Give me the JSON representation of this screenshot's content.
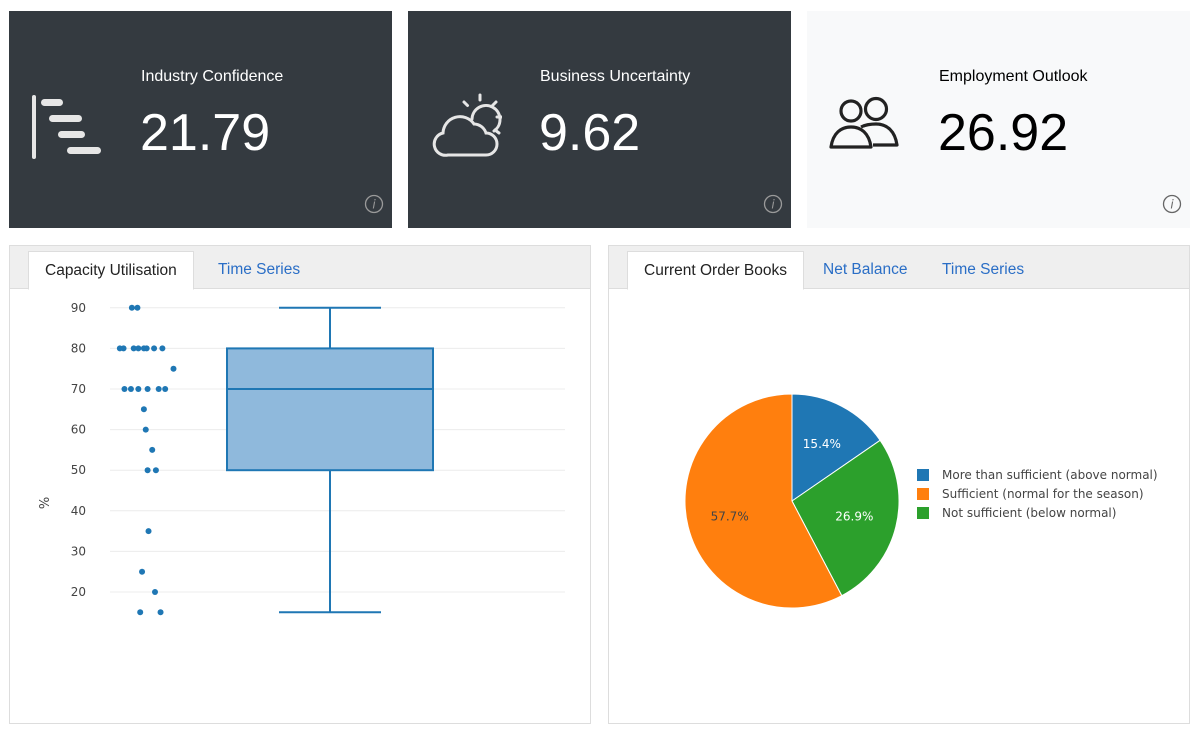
{
  "cards": [
    {
      "label": "Industry Confidence",
      "value": "21.79",
      "icon": "gantt-bars-icon"
    },
    {
      "label": "Business Uncertainty",
      "value": "9.62",
      "icon": "cloud-sun-icon"
    },
    {
      "label": "Employment Outlook",
      "value": "26.92",
      "icon": "people-icon"
    }
  ],
  "left_panel": {
    "tabs": [
      {
        "label": "Capacity Utilisation"
      },
      {
        "label": "Time Series"
      }
    ]
  },
  "right_panel": {
    "tabs": [
      {
        "label": "Current Order Books"
      },
      {
        "label": "Net Balance"
      },
      {
        "label": "Time Series"
      }
    ]
  },
  "colors": {
    "accent": "#1f77b4",
    "orange": "#ff7f0e",
    "green": "#2ca02c",
    "dark_card": "#343a40"
  },
  "chart_data": [
    {
      "type": "box",
      "ylabel": "%",
      "ylim": [
        10,
        95
      ],
      "yticks": [
        20,
        30,
        40,
        50,
        60,
        70,
        80,
        90
      ],
      "box": {
        "min": 15,
        "q1": 50,
        "median": 70,
        "q3": 80,
        "max": 90
      },
      "points": [
        {
          "x": 0.75,
          "y": 90
        },
        {
          "x": 1.05,
          "y": 90
        },
        {
          "x": 0.1,
          "y": 80
        },
        {
          "x": 0.3,
          "y": 80
        },
        {
          "x": 1.4,
          "y": 80
        },
        {
          "x": 1.55,
          "y": 80
        },
        {
          "x": 1.95,
          "y": 80
        },
        {
          "x": 1.1,
          "y": 80
        },
        {
          "x": 0.85,
          "y": 80
        },
        {
          "x": 2.4,
          "y": 80
        },
        {
          "x": 3.0,
          "y": 75
        },
        {
          "x": 0.35,
          "y": 70
        },
        {
          "x": 0.7,
          "y": 70
        },
        {
          "x": 1.1,
          "y": 70
        },
        {
          "x": 1.6,
          "y": 70
        },
        {
          "x": 2.2,
          "y": 70
        },
        {
          "x": 2.55,
          "y": 70
        },
        {
          "x": 1.4,
          "y": 65
        },
        {
          "x": 1.5,
          "y": 60
        },
        {
          "x": 1.85,
          "y": 55
        },
        {
          "x": 1.6,
          "y": 50
        },
        {
          "x": 2.05,
          "y": 50
        },
        {
          "x": 1.65,
          "y": 35
        },
        {
          "x": 1.3,
          "y": 25
        },
        {
          "x": 2.0,
          "y": 20
        },
        {
          "x": 1.2,
          "y": 15
        },
        {
          "x": 2.3,
          "y": 15
        }
      ]
    },
    {
      "type": "pie",
      "slices": [
        {
          "label": "More than sufficient (above normal)",
          "value": 15.4,
          "text": "15.4%",
          "color": "#1f77b4"
        },
        {
          "label": "Not sufficient (below normal)",
          "value": 26.9,
          "text": "26.9%",
          "color": "#2ca02c"
        },
        {
          "label": "Sufficient (normal for the season)",
          "value": 57.7,
          "text": "57.7%",
          "color": "#ff7f0e"
        }
      ],
      "legend": [
        {
          "label": "More than sufficient (above normal)",
          "color": "#1f77b4"
        },
        {
          "label": "Sufficient (normal for the season)",
          "color": "#ff7f0e"
        },
        {
          "label": "Not sufficient (below normal)",
          "color": "#2ca02c"
        }
      ],
      "legend_position": "right"
    }
  ]
}
